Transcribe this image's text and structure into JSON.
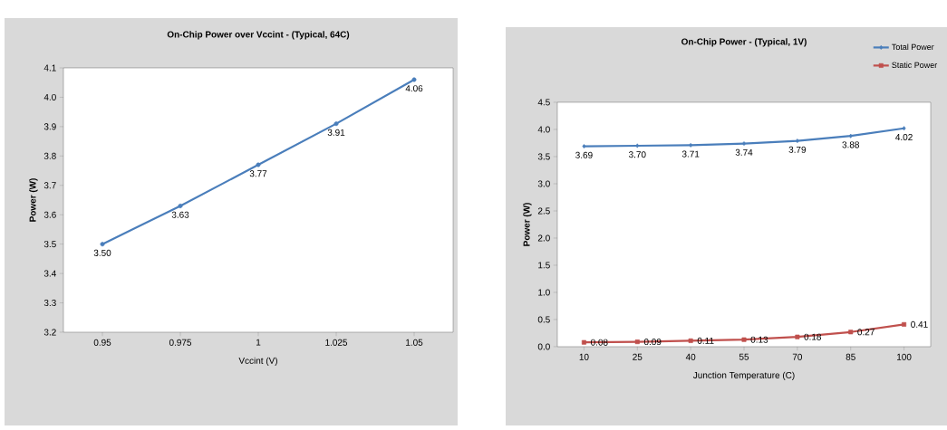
{
  "chart_data": [
    {
      "type": "line",
      "title": "On-Chip Power over Vccint - (Typical, 64C)",
      "xlabel": "Vccint (V)",
      "ylabel": "Power (W)",
      "categories": [
        "0.95",
        "0.975",
        "1",
        "1.025",
        "1.05"
      ],
      "series": [
        {
          "color": "#4a7ebb",
          "marker": "circle",
          "values": [
            3.5,
            3.63,
            3.77,
            3.91,
            4.06
          ],
          "value_labels": [
            "3.50",
            "3.63",
            "3.77",
            "3.91",
            "4.06"
          ]
        }
      ],
      "ylim": [
        3.2,
        4.1
      ],
      "yticks": [
        3.2,
        3.3,
        3.4,
        3.5,
        3.6,
        3.7,
        3.8,
        3.9,
        {
          "value": 4.0,
          "label": "4.0"
        },
        4.1
      ]
    },
    {
      "type": "line",
      "title": "On-Chip Power - (Typical, 1V)",
      "xlabel": "Junction Temperature (C)",
      "ylabel": "Power (W)",
      "categories": [
        "10",
        "25",
        "40",
        "55",
        "70",
        "85",
        "100"
      ],
      "series": [
        {
          "name": "Total Power",
          "color": "#4a7ebb",
          "marker": "diamond",
          "values": [
            3.69,
            3.7,
            3.71,
            3.74,
            3.79,
            3.88,
            4.02
          ],
          "value_labels": [
            "3.69",
            "3.70",
            "3.71",
            "3.74",
            "3.79",
            "3.88",
            "4.02"
          ]
        },
        {
          "name": "Static Power",
          "color": "#c0504d",
          "marker": "square",
          "values": [
            0.08,
            0.09,
            0.11,
            0.13,
            0.18,
            0.27,
            0.41
          ],
          "value_labels": [
            "0.08",
            "0.09",
            "0.11",
            "0.13",
            "0.18",
            "0.27",
            "0.41"
          ]
        }
      ],
      "ylim": [
        0,
        4.5
      ],
      "yticks": [
        {
          "value": 0,
          "label": "0.0"
        },
        0.5,
        {
          "value": 1,
          "label": "1.0"
        },
        1.5,
        {
          "value": 2,
          "label": "2.0"
        },
        2.5,
        {
          "value": 3,
          "label": "3.0"
        },
        3.5,
        {
          "value": 4,
          "label": "4.0"
        },
        4.5
      ],
      "legend": "top right"
    }
  ]
}
